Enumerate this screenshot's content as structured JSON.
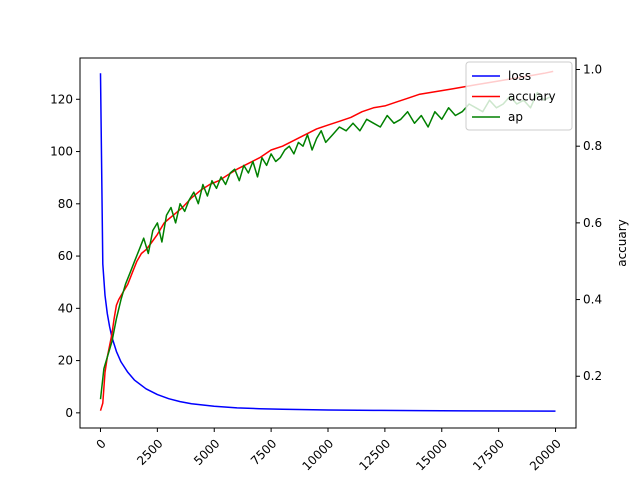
{
  "chart_data": {
    "type": "line",
    "xlabel": "",
    "ylabel_left": "",
    "ylabel_right": "accuary",
    "xlim": [
      -900,
      20900
    ],
    "ylim_left": [
      -5.8,
      135.8
    ],
    "ylim_right": [
      0.065,
      1.03
    ],
    "x_ticks": [
      0,
      2500,
      5000,
      7500,
      10000,
      12500,
      15000,
      17500,
      20000
    ],
    "x_tick_labels": [
      "0",
      "2500",
      "5000",
      "7500",
      "10000",
      "12500",
      "15000",
      "17500",
      "20000"
    ],
    "x_tick_rotation": 45,
    "y_left_ticks": [
      0,
      20,
      40,
      60,
      80,
      100,
      120
    ],
    "y_left_tick_labels": [
      "0",
      "20",
      "40",
      "60",
      "80",
      "100",
      "120"
    ],
    "y_right_ticks": [
      0.2,
      0.4,
      0.6,
      0.8,
      1.0
    ],
    "y_right_tick_labels": [
      "0.2",
      "0.4",
      "0.6",
      "0.8",
      "1.0"
    ],
    "grid": false,
    "legend_position": "top-right",
    "series": [
      {
        "name": "loss",
        "axis": "left",
        "color": "#0000ff",
        "x": [
          0,
          100,
          200,
          300,
          400,
          500,
          700,
          900,
          1200,
          1500,
          2000,
          2500,
          3000,
          3500,
          4000,
          5000,
          6000,
          7000,
          8000,
          10000,
          12000,
          14000,
          16000,
          18000,
          20000
        ],
        "y": [
          130,
          57,
          45,
          38,
          33,
          29,
          23.5,
          19.5,
          15.5,
          12.5,
          9.2,
          7.0,
          5.4,
          4.3,
          3.5,
          2.5,
          1.9,
          1.6,
          1.35,
          1.1,
          0.95,
          0.85,
          0.75,
          0.7,
          0.65
        ]
      },
      {
        "name": "accuary",
        "axis": "right",
        "color": "#ff0000",
        "x": [
          0,
          100,
          200,
          300,
          400,
          500,
          600,
          700,
          800,
          1000,
          1200,
          1400,
          1600,
          1800,
          2000,
          2200,
          2500,
          2800,
          3000,
          3300,
          3600,
          4000,
          4400,
          4800,
          5200,
          5600,
          6000,
          6500,
          7000,
          7500,
          8000,
          8500,
          9000,
          9500,
          10000,
          10500,
          11000,
          11500,
          12000,
          12500,
          13000,
          13500,
          14000,
          14500,
          15000,
          15500,
          16000,
          16500,
          17000,
          17500,
          18000,
          18500,
          19000,
          19500,
          19900
        ],
        "y": [
          0.11,
          0.13,
          0.21,
          0.25,
          0.28,
          0.31,
          0.35,
          0.385,
          0.4,
          0.42,
          0.44,
          0.47,
          0.5,
          0.52,
          0.53,
          0.545,
          0.57,
          0.6,
          0.61,
          0.625,
          0.64,
          0.665,
          0.685,
          0.7,
          0.71,
          0.725,
          0.74,
          0.755,
          0.77,
          0.79,
          0.8,
          0.815,
          0.83,
          0.845,
          0.855,
          0.865,
          0.875,
          0.89,
          0.9,
          0.905,
          0.915,
          0.925,
          0.935,
          0.94,
          0.945,
          0.95,
          0.955,
          0.96,
          0.965,
          0.97,
          0.975,
          0.98,
          0.985,
          0.99,
          0.995
        ]
      },
      {
        "name": "ap",
        "axis": "right",
        "color": "#008000",
        "x": [
          0,
          150,
          300,
          500,
          700,
          900,
          1100,
          1300,
          1500,
          1700,
          1900,
          2100,
          2300,
          2500,
          2700,
          2900,
          3100,
          3300,
          3500,
          3700,
          3900,
          4100,
          4300,
          4500,
          4700,
          4900,
          5100,
          5300,
          5500,
          5700,
          5900,
          6100,
          6300,
          6500,
          6700,
          6900,
          7100,
          7300,
          7500,
          7700,
          7900,
          8100,
          8300,
          8500,
          8700,
          8900,
          9100,
          9300,
          9500,
          9700,
          9900,
          10200,
          10500,
          10800,
          11100,
          11400,
          11700,
          12000,
          12300,
          12600,
          12900,
          13200,
          13500,
          13800,
          14100,
          14400,
          14700,
          15000,
          15300,
          15600,
          15900,
          16200,
          16500,
          16800,
          17100,
          17400,
          17700,
          18000,
          18300,
          18600,
          18900,
          19200,
          19500,
          19800
        ],
        "y": [
          0.14,
          0.22,
          0.25,
          0.29,
          0.35,
          0.4,
          0.44,
          0.47,
          0.5,
          0.53,
          0.56,
          0.52,
          0.58,
          0.6,
          0.55,
          0.62,
          0.64,
          0.6,
          0.65,
          0.63,
          0.66,
          0.68,
          0.65,
          0.7,
          0.67,
          0.71,
          0.69,
          0.72,
          0.7,
          0.73,
          0.74,
          0.71,
          0.75,
          0.73,
          0.76,
          0.72,
          0.77,
          0.75,
          0.78,
          0.76,
          0.77,
          0.79,
          0.8,
          0.78,
          0.81,
          0.8,
          0.83,
          0.79,
          0.82,
          0.84,
          0.81,
          0.83,
          0.85,
          0.84,
          0.86,
          0.84,
          0.87,
          0.86,
          0.85,
          0.88,
          0.86,
          0.87,
          0.89,
          0.86,
          0.88,
          0.85,
          0.89,
          0.87,
          0.9,
          0.88,
          0.89,
          0.91,
          0.9,
          0.89,
          0.92,
          0.9,
          0.91,
          0.93,
          0.91,
          0.92,
          0.9,
          0.94,
          0.92,
          0.93
        ]
      }
    ]
  }
}
